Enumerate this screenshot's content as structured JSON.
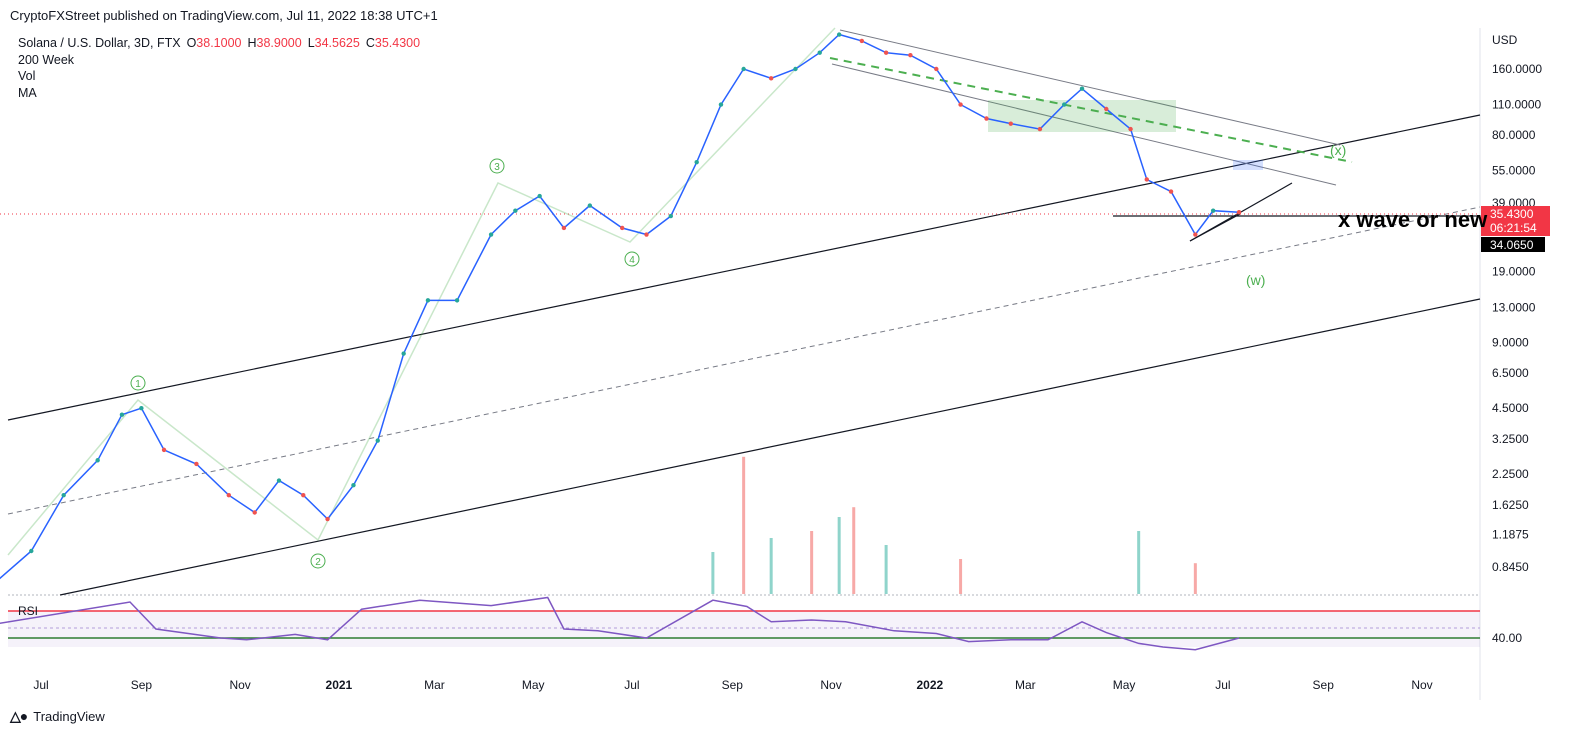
{
  "header": {
    "published": "CryptoFXStreet published on TradingView.com, Jul 11, 2022 18:38 UTC+1"
  },
  "legend": {
    "symbol": "Solana / U.S. Dollar, 3D, FTX",
    "open_label": "O",
    "open": "38.1000",
    "high_label": "H",
    "high": "38.9000",
    "low_label": "L",
    "low": "34.5625",
    "close_label": "C",
    "close": "35.4300",
    "indicators": [
      "200 Week",
      "Vol",
      "MA"
    ]
  },
  "footer": {
    "brand": "TradingView"
  },
  "chart_data": {
    "type": "line",
    "currency": "USD",
    "scale": "log",
    "price_ticks": [
      "160.0000",
      "110.0000",
      "80.0000",
      "55.0000",
      "39.0000",
      "19.0000",
      "13.0000",
      "9.0000",
      "6.5000",
      "4.5000",
      "3.2500",
      "2.2500",
      "1.6250",
      "1.1875",
      "0.8450"
    ],
    "price_tick_values": [
      160,
      110,
      80,
      55,
      39,
      19,
      13,
      9,
      6.5,
      4.5,
      3.25,
      2.25,
      1.625,
      1.1875,
      0.845
    ],
    "x_ticks": [
      "Jul",
      "Sep",
      "Nov",
      "2021",
      "Mar",
      "May",
      "Jul",
      "Sep",
      "Nov",
      "2022",
      "Mar",
      "May",
      "Jul",
      "Sep",
      "Nov"
    ],
    "rsi": {
      "label": "RSI",
      "tick": "40.00",
      "upper": 70,
      "lower": 30
    },
    "last_price": {
      "value": "35.4300",
      "countdown": "06:21:54",
      "color": "#f23645"
    },
    "level_label": {
      "value": "34.0650"
    },
    "annotations": [
      "x wave or new",
      "(x)",
      "(w)",
      "1",
      "2",
      "3",
      "4"
    ],
    "price_series": {
      "name": "SOL/USD",
      "points": [
        [
          "2020-06-01",
          0.7
        ],
        [
          "2020-06-25",
          1.0
        ],
        [
          "2020-07-15",
          1.8
        ],
        [
          "2020-08-05",
          2.6
        ],
        [
          "2020-08-20",
          4.2
        ],
        [
          "2020-09-01",
          4.5
        ],
        [
          "2020-09-15",
          2.9
        ],
        [
          "2020-10-05",
          2.5
        ],
        [
          "2020-10-25",
          1.8
        ],
        [
          "2020-11-10",
          1.5
        ],
        [
          "2020-11-25",
          2.1
        ],
        [
          "2020-12-10",
          1.8
        ],
        [
          "2020-12-25",
          1.4
        ],
        [
          "2021-01-10",
          2.0
        ],
        [
          "2021-01-25",
          3.2
        ],
        [
          "2021-02-10",
          8.0
        ],
        [
          "2021-02-25",
          14.0
        ],
        [
          "2021-03-15",
          14.0
        ],
        [
          "2021-04-05",
          28.0
        ],
        [
          "2021-04-20",
          36.0
        ],
        [
          "2021-05-05",
          42.0
        ],
        [
          "2021-05-20",
          30.0
        ],
        [
          "2021-06-05",
          38.0
        ],
        [
          "2021-06-25",
          30.0
        ],
        [
          "2021-07-10",
          28.0
        ],
        [
          "2021-07-25",
          34.0
        ],
        [
          "2021-08-10",
          60.0
        ],
        [
          "2021-08-25",
          110.0
        ],
        [
          "2021-09-08",
          160.0
        ],
        [
          "2021-09-25",
          145.0
        ],
        [
          "2021-10-10",
          160.0
        ],
        [
          "2021-10-25",
          190.0
        ],
        [
          "2021-11-06",
          230.0
        ],
        [
          "2021-11-20",
          215.0
        ],
        [
          "2021-12-05",
          190.0
        ],
        [
          "2021-12-20",
          185.0
        ],
        [
          "2022-01-05",
          160.0
        ],
        [
          "2022-01-20",
          110.0
        ],
        [
          "2022-02-05",
          95.0
        ],
        [
          "2022-02-20",
          90.0
        ],
        [
          "2022-03-10",
          85.0
        ],
        [
          "2022-03-25",
          110.0
        ],
        [
          "2022-04-05",
          130.0
        ],
        [
          "2022-04-20",
          105.0
        ],
        [
          "2022-05-05",
          85.0
        ],
        [
          "2022-05-15",
          50.0
        ],
        [
          "2022-05-30",
          44.0
        ],
        [
          "2022-06-14",
          28.0
        ],
        [
          "2022-06-25",
          36.0
        ],
        [
          "2022-07-11",
          35.43
        ]
      ]
    },
    "rsi_points": [
      [
        "2020-06-01",
        55
      ],
      [
        "2020-08-25",
        80
      ],
      [
        "2020-09-10",
        50
      ],
      [
        "2020-10-20",
        40
      ],
      [
        "2020-11-05",
        38
      ],
      [
        "2020-12-05",
        44
      ],
      [
        "2020-12-25",
        38
      ],
      [
        "2021-01-15",
        72
      ],
      [
        "2021-02-20",
        82
      ],
      [
        "2021-04-05",
        76
      ],
      [
        "2021-05-10",
        85
      ],
      [
        "2021-05-20",
        50
      ],
      [
        "2021-06-10",
        48
      ],
      [
        "2021-07-10",
        40
      ],
      [
        "2021-08-20",
        82
      ],
      [
        "2021-09-10",
        75
      ],
      [
        "2021-09-25",
        58
      ],
      [
        "2021-10-20",
        60
      ],
      [
        "2021-11-10",
        58
      ],
      [
        "2021-12-10",
        48
      ],
      [
        "2022-01-05",
        45
      ],
      [
        "2022-01-25",
        36
      ],
      [
        "2022-02-20",
        38
      ],
      [
        "2022-03-15",
        38
      ],
      [
        "2022-04-05",
        58
      ],
      [
        "2022-04-20",
        46
      ],
      [
        "2022-05-10",
        34
      ],
      [
        "2022-05-25",
        30
      ],
      [
        "2022-06-14",
        27
      ],
      [
        "2022-07-11",
        40
      ]
    ],
    "volume": [
      [
        "2021-08-20",
        0.3
      ],
      [
        "2021-09-08",
        0.98
      ],
      [
        "2021-09-25",
        0.4
      ],
      [
        "2021-10-20",
        0.45
      ],
      [
        "2021-11-06",
        0.55
      ],
      [
        "2021-11-15",
        0.62
      ],
      [
        "2021-12-05",
        0.35
      ],
      [
        "2022-01-20",
        0.25
      ],
      [
        "2022-05-10",
        0.45
      ],
      [
        "2022-06-14",
        0.22
      ]
    ]
  }
}
